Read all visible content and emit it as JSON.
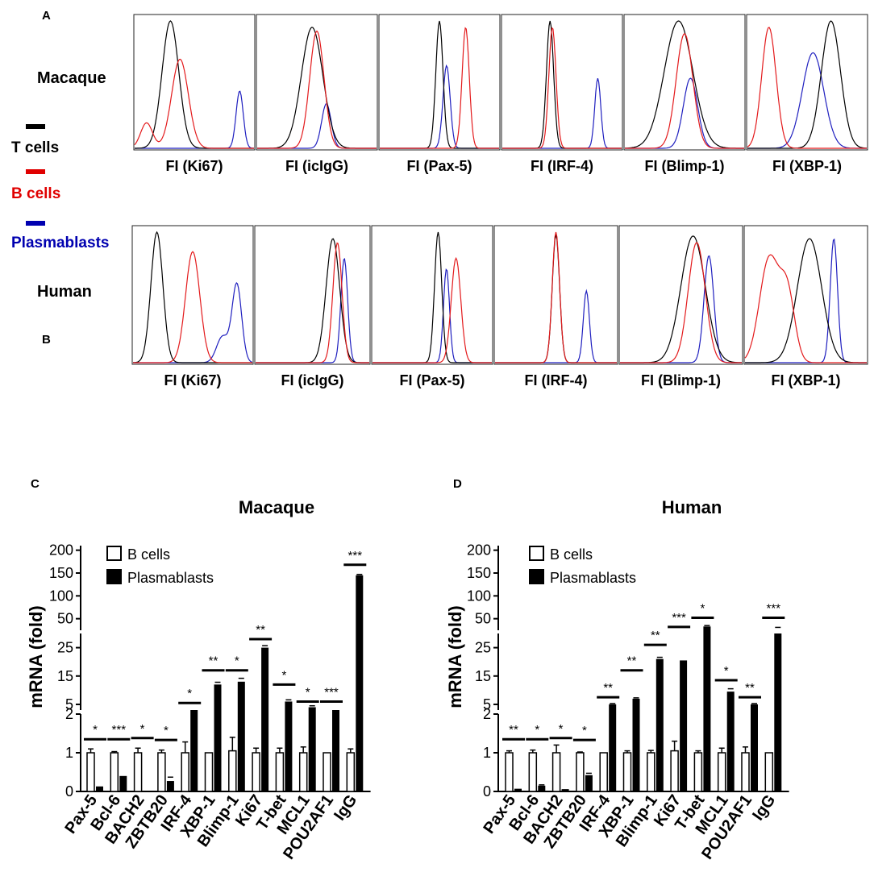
{
  "panel_labels": {
    "a": "A",
    "b": "B",
    "c": "C",
    "d": "D"
  },
  "species": {
    "macaque": "Macaque",
    "human": "Human"
  },
  "legend_flow": [
    {
      "label": "T cells",
      "color": "#000000"
    },
    {
      "label": "B cells",
      "color": "#e00000"
    },
    {
      "label": "Plasmablasts",
      "color": "#0000b0"
    }
  ],
  "colors": {
    "t_cells": "#000000",
    "b_cells": "#e31a1c",
    "plasmablasts": "#1f1fbf"
  },
  "chart_data": [
    {
      "type": "histogram",
      "panel": "A",
      "species": "Macaque",
      "curves_order": [
        "T cells",
        "B cells",
        "Plasmablasts"
      ],
      "histograms": [
        {
          "xlabel": "FI (Ki67)",
          "peaks": [
            [
              [
                0.3,
                0.07,
                1.0
              ]
            ],
            [
              [
                0.38,
                0.07,
                0.7
              ],
              [
                0.1,
                0.05,
                0.2
              ]
            ],
            [
              [
                0.88,
                0.03,
                0.45
              ]
            ]
          ]
        },
        {
          "xlabel": "FI (icIgG)",
          "peaks": [
            [
              [
                0.46,
                0.09,
                0.95
              ]
            ],
            [
              [
                0.5,
                0.06,
                0.92
              ]
            ],
            [
              [
                0.58,
                0.04,
                0.35
              ]
            ]
          ]
        },
        {
          "xlabel": "FI (Pax-5)",
          "peaks": [
            [
              [
                0.5,
                0.03,
                1.0
              ]
            ],
            [
              [
                0.72,
                0.03,
                0.95
              ]
            ],
            [
              [
                0.56,
                0.03,
                0.65
              ]
            ]
          ]
        },
        {
          "xlabel": "FI (IRF-4)",
          "peaks": [
            [
              [
                0.4,
                0.03,
                1.0
              ]
            ],
            [
              [
                0.42,
                0.03,
                0.95
              ]
            ],
            [
              [
                0.8,
                0.025,
                0.55
              ]
            ]
          ]
        },
        {
          "xlabel": "FI (Blimp-1)",
          "peaks": [
            [
              [
                0.45,
                0.12,
                1.0
              ]
            ],
            [
              [
                0.5,
                0.07,
                0.9
              ]
            ],
            [
              [
                0.55,
                0.06,
                0.55
              ]
            ]
          ]
        },
        {
          "xlabel": "FI (XBP-1)",
          "peaks": [
            [
              [
                0.7,
                0.08,
                1.0
              ]
            ],
            [
              [
                0.18,
                0.06,
                0.95
              ]
            ],
            [
              [
                0.55,
                0.09,
                0.75
              ]
            ]
          ]
        }
      ]
    },
    {
      "type": "histogram",
      "panel": "B",
      "species": "Human",
      "curves_order": [
        "T cells",
        "B cells",
        "Plasmablasts"
      ],
      "histograms": [
        {
          "xlabel": "FI (Ki67)",
          "peaks": [
            [
              [
                0.2,
                0.05,
                1.0
              ]
            ],
            [
              [
                0.5,
                0.06,
                0.85
              ]
            ],
            [
              [
                0.87,
                0.04,
                0.6
              ],
              [
                0.75,
                0.05,
                0.2
              ]
            ]
          ]
        },
        {
          "xlabel": "FI (icIgG)",
          "peaks": [
            [
              [
                0.68,
                0.06,
                0.95
              ]
            ],
            [
              [
                0.72,
                0.04,
                0.92
              ]
            ],
            [
              [
                0.78,
                0.03,
                0.8
              ]
            ]
          ]
        },
        {
          "xlabel": "FI (Pax-5)",
          "peaks": [
            [
              [
                0.55,
                0.03,
                1.0
              ]
            ],
            [
              [
                0.7,
                0.04,
                0.8
              ]
            ],
            [
              [
                0.62,
                0.025,
                0.72
              ]
            ]
          ]
        },
        {
          "xlabel": "FI (IRF-4)",
          "peaks": [
            [
              [
                0.5,
                0.03,
                0.98
              ]
            ],
            [
              [
                0.5,
                0.03,
                1.0
              ]
            ],
            [
              [
                0.75,
                0.025,
                0.55
              ]
            ]
          ]
        },
        {
          "xlabel": "FI (Blimp-1)",
          "peaks": [
            [
              [
                0.6,
                0.1,
                0.97
              ]
            ],
            [
              [
                0.63,
                0.07,
                0.92
              ]
            ],
            [
              [
                0.73,
                0.04,
                0.82
              ]
            ]
          ]
        },
        {
          "xlabel": "FI (XBP-1)",
          "peaks": [
            [
              [
                0.53,
                0.1,
                0.95
              ]
            ],
            [
              [
                0.2,
                0.08,
                0.8
              ],
              [
                0.35,
                0.06,
                0.5
              ]
            ],
            [
              [
                0.73,
                0.03,
                0.95
              ]
            ]
          ]
        }
      ]
    },
    {
      "type": "bar",
      "panel": "C",
      "title": "Macaque",
      "ylabel": "mRNA (fold)",
      "y_segments": [
        {
          "range": [
            0,
            2
          ],
          "ticks": [
            "0",
            "1",
            "2"
          ]
        },
        {
          "range": [
            3,
            30
          ],
          "ticks": [
            "5",
            "15",
            "25"
          ]
        },
        {
          "range": [
            30,
            210
          ],
          "ticks": [
            "50",
            "100",
            "150",
            "200"
          ]
        }
      ],
      "legend": [
        "B cells",
        "Plasmablasts"
      ],
      "categories": [
        "Pax-5",
        "Bcl-6",
        "BACH2",
        "ZBTB20",
        "IRF-4",
        "XBP-1",
        "Blimp-1",
        "Ki67",
        "T-bet",
        "MCL1",
        "POU2AF1",
        "IgG"
      ],
      "series": [
        {
          "name": "B cells",
          "values": [
            1.0,
            1.0,
            1.0,
            1.0,
            1.0,
            1.0,
            1.05,
            1.0,
            1.0,
            1.0,
            1.0,
            1.0
          ],
          "errors": [
            0.1,
            0.03,
            0.12,
            0.07,
            0.28,
            0.0,
            0.35,
            0.12,
            0.12,
            0.15,
            0.0,
            0.1
          ]
        },
        {
          "name": "Plasmablasts",
          "values": [
            0.13,
            0.4,
            0.0,
            0.27,
            3.0,
            12.0,
            13.0,
            25.0,
            6.0,
            4.0,
            3.0,
            145
          ],
          "errors": [
            0.0,
            0.0,
            0.0,
            0.1,
            0.0,
            0.8,
            1.2,
            0.7,
            0.6,
            0.5,
            0.0,
            2.0
          ]
        }
      ],
      "significance": [
        "*",
        "***",
        "*",
        "*",
        "*",
        "**",
        "*",
        "**",
        "*",
        "*",
        "***",
        "***"
      ],
      "sig_bar_values": [
        1.35,
        1.35,
        1.38,
        1.33,
        5.5,
        17.0,
        17.0,
        28.0,
        12.0,
        6.0,
        6.0,
        168
      ]
    },
    {
      "type": "bar",
      "panel": "D",
      "title": "Human",
      "ylabel": "mRNA (fold)",
      "y_segments": [
        {
          "range": [
            0,
            2
          ],
          "ticks": [
            "0",
            "1",
            "2"
          ]
        },
        {
          "range": [
            3,
            30
          ],
          "ticks": [
            "5",
            "15",
            "25"
          ]
        },
        {
          "range": [
            30,
            210
          ],
          "ticks": [
            "50",
            "100",
            "150",
            "200"
          ]
        }
      ],
      "legend": [
        "B cells",
        "Plasmablasts"
      ],
      "categories": [
        "Pax-5",
        "Bcl-6",
        "BACH2",
        "ZBTB20",
        "IRF-4",
        "XBP-1",
        "Blimp-1",
        "Ki67",
        "T-bet",
        "MCL1",
        "POU2AF1",
        "IgG"
      ],
      "series": [
        {
          "name": "B cells",
          "values": [
            1.0,
            1.0,
            1.0,
            1.0,
            1.0,
            1.0,
            1.0,
            1.05,
            1.0,
            1.0,
            1.0,
            1.0
          ],
          "errors": [
            0.05,
            0.07,
            0.2,
            0.02,
            0.0,
            0.05,
            0.06,
            0.25,
            0.05,
            0.12,
            0.15,
            0.0
          ]
        },
        {
          "name": "Plasmablasts",
          "values": [
            0.07,
            0.15,
            0.06,
            0.42,
            5.0,
            7.0,
            21.0,
            20.5,
            33,
            9.5,
            5.0,
            30
          ],
          "errors": [
            0.0,
            0.02,
            0.0,
            0.05,
            0.3,
            0.3,
            0.6,
            0.0,
            2.0,
            1.0,
            0.3,
            1.0
          ]
        }
      ],
      "significance": [
        "**",
        "*",
        "*",
        "*",
        "**",
        "**",
        "**",
        "***",
        "*",
        "*",
        "**",
        "***"
      ],
      "sig_bar_values": [
        1.35,
        1.35,
        1.38,
        1.33,
        7.5,
        17.0,
        26.0,
        32,
        52,
        13.5,
        7.5,
        52
      ]
    }
  ]
}
